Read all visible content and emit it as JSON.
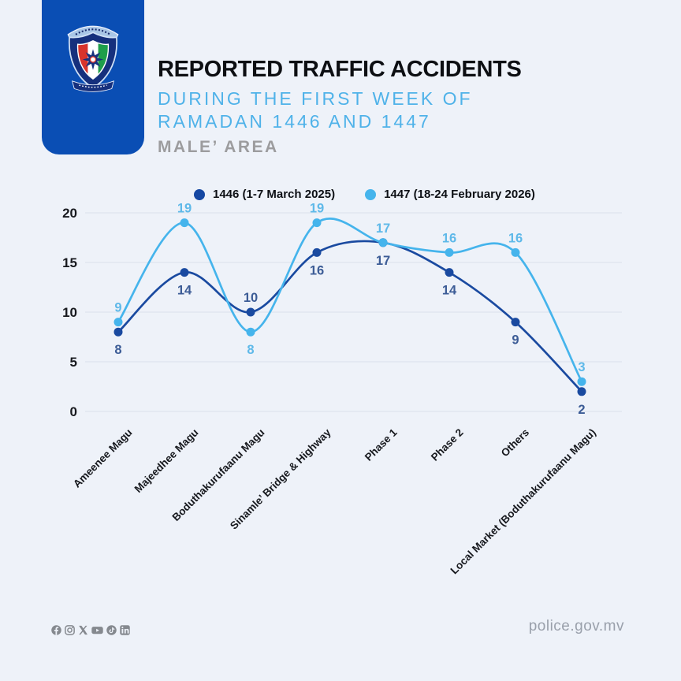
{
  "header": {
    "title": "REPORTED TRAFFIC ACCIDENTS",
    "subtitle_line1": "DURING THE FIRST WEEK OF",
    "subtitle_line2": "RAMADAN 1446 AND 1447",
    "area": "MALE’ AREA",
    "logo": "maldives-police-crest"
  },
  "legend": [
    {
      "label": "1446 (1-7 March 2025)",
      "color": "#1547a2"
    },
    {
      "label": "1447 (18-24 February 2026)",
      "color": "#45b4ec"
    }
  ],
  "chart_data": {
    "type": "line",
    "title": "Reported traffic accidents during the first week of Ramadan 1446 and 1447 (Male' Area)",
    "categories": [
      "Ameenee Magu",
      "Majeedhee Magu",
      "Boduthakurufaanu Magu",
      "Sinamle’ Bridge & Highway",
      "Phase 1",
      "Phase 2",
      "Others",
      "Local Market (Boduthakurufaanu Magu)"
    ],
    "series": [
      {
        "name": "1446 (1-7 March 2025)",
        "color": "#1a4aa0",
        "label_color": "#3c5c96",
        "values": [
          8,
          14,
          10,
          16,
          17,
          14,
          9,
          2
        ]
      },
      {
        "name": "1447 (18-24 February 2026)",
        "color": "#45b4ec",
        "label_color": "#5fb9e9",
        "values": [
          9,
          19,
          8,
          19,
          17,
          16,
          16,
          3
        ]
      }
    ],
    "xlabel": "",
    "ylabel": "",
    "ylim": [
      0,
      20
    ],
    "yticks": [
      0,
      5,
      10,
      15,
      20
    ],
    "grid": true,
    "legend_position": "top",
    "smooth": true,
    "data_labels": true
  },
  "footer": {
    "social_icons": [
      "facebook-icon",
      "instagram-icon",
      "x-icon",
      "youtube-icon",
      "tiktok-icon",
      "linkedin-icon"
    ],
    "website": "police.gov.mv"
  },
  "colors": {
    "background": "#eef2f9",
    "badge": "#0a4eb4",
    "title": "#0d0f13",
    "subtitle": "#4fb2e9",
    "area": "#9c9c9e",
    "grid": "#e1e6ef",
    "axis_text": "#17191e",
    "footer_icon": "#85898f",
    "footer_url": "#9aa0ab"
  }
}
